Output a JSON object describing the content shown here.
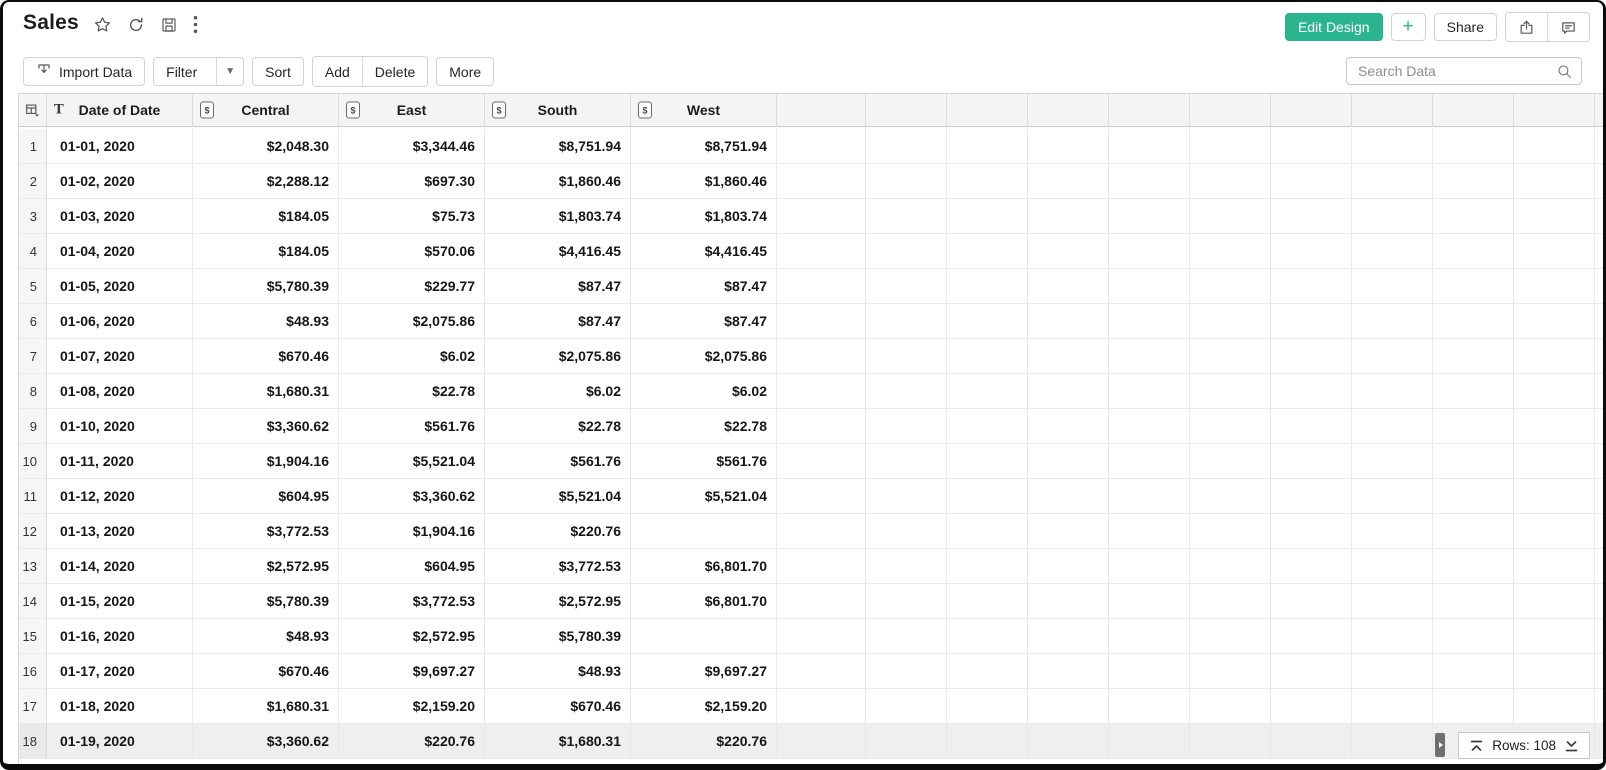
{
  "app": {
    "title": "Sales"
  },
  "colors": {
    "accent_green": "#2bb58f"
  },
  "header": {
    "title": "Sales",
    "title_icons": [
      "star-icon",
      "refresh-icon",
      "save-icon",
      "kebab-menu-icon"
    ],
    "edit_design_label": "Edit Design",
    "plus_label": "+",
    "share_label": "Share",
    "right_icons": [
      "export-icon",
      "comment-icon"
    ]
  },
  "toolbar": {
    "import_data_label": "Import Data",
    "filter_label": "Filter",
    "sort_label": "Sort",
    "add_label": "Add",
    "delete_label": "Delete",
    "more_label": "More",
    "search_placeholder": "Search Data"
  },
  "table": {
    "corner_icon": "table-select-icon",
    "date_column": {
      "label": "Date of Date",
      "type_icon": "text-type-icon"
    },
    "currency_type_icon": "currency-type-icon",
    "currency_columns": [
      "Central",
      "East",
      "South",
      "West"
    ],
    "empty_column_count": 11,
    "rows": [
      {
        "n": "1",
        "date": "01-01, 2020",
        "values": [
          "$2,048.30",
          "$3,344.46",
          "$8,751.94",
          "$8,751.94"
        ]
      },
      {
        "n": "2",
        "date": "01-02, 2020",
        "values": [
          "$2,288.12",
          "$697.30",
          "$1,860.46",
          "$1,860.46"
        ]
      },
      {
        "n": "3",
        "date": "01-03, 2020",
        "values": [
          "$184.05",
          "$75.73",
          "$1,803.74",
          "$1,803.74"
        ]
      },
      {
        "n": "4",
        "date": "01-04, 2020",
        "values": [
          "$184.05",
          "$570.06",
          "$4,416.45",
          "$4,416.45"
        ]
      },
      {
        "n": "5",
        "date": "01-05, 2020",
        "values": [
          "$5,780.39",
          "$229.77",
          "$87.47",
          "$87.47"
        ]
      },
      {
        "n": "6",
        "date": "01-06, 2020",
        "values": [
          "$48.93",
          "$2,075.86",
          "$87.47",
          "$87.47"
        ]
      },
      {
        "n": "7",
        "date": "01-07, 2020",
        "values": [
          "$670.46",
          "$6.02",
          "$2,075.86",
          "$2,075.86"
        ]
      },
      {
        "n": "8",
        "date": "01-08, 2020",
        "values": [
          "$1,680.31",
          "$22.78",
          "$6.02",
          "$6.02"
        ]
      },
      {
        "n": "9",
        "date": "01-10, 2020",
        "values": [
          "$3,360.62",
          "$561.76",
          "$22.78",
          "$22.78"
        ]
      },
      {
        "n": "10",
        "date": "01-11, 2020",
        "values": [
          "$1,904.16",
          "$5,521.04",
          "$561.76",
          "$561.76"
        ]
      },
      {
        "n": "11",
        "date": "01-12, 2020",
        "values": [
          "$604.95",
          "$3,360.62",
          "$5,521.04",
          "$5,521.04"
        ]
      },
      {
        "n": "12",
        "date": "01-13, 2020",
        "values": [
          "$3,772.53",
          "$1,904.16",
          "$220.76",
          ""
        ]
      },
      {
        "n": "13",
        "date": "01-14, 2020",
        "values": [
          "$2,572.95",
          "$604.95",
          "$3,772.53",
          "$6,801.70"
        ]
      },
      {
        "n": "14",
        "date": "01-15, 2020",
        "values": [
          "$5,780.39",
          "$3,772.53",
          "$2,572.95",
          "$6,801.70"
        ]
      },
      {
        "n": "15",
        "date": "01-16, 2020",
        "values": [
          "$48.93",
          "$2,572.95",
          "$5,780.39",
          ""
        ]
      },
      {
        "n": "16",
        "date": "01-17, 2020",
        "values": [
          "$670.46",
          "$9,697.27",
          "$48.93",
          "$9,697.27"
        ]
      },
      {
        "n": "17",
        "date": "01-18, 2020",
        "values": [
          "$1,680.31",
          "$2,159.20",
          "$670.46",
          "$2,159.20"
        ]
      },
      {
        "n": "18",
        "date": "01-19, 2020",
        "values": [
          "$3,360.62",
          "$220.76",
          "$1,680.31",
          "$220.76"
        ]
      }
    ]
  },
  "footer": {
    "rows_label": "Rows: 108",
    "icons": [
      "scroll-to-top-icon",
      "scroll-to-bottom-icon",
      "scrollbar-handle"
    ]
  }
}
